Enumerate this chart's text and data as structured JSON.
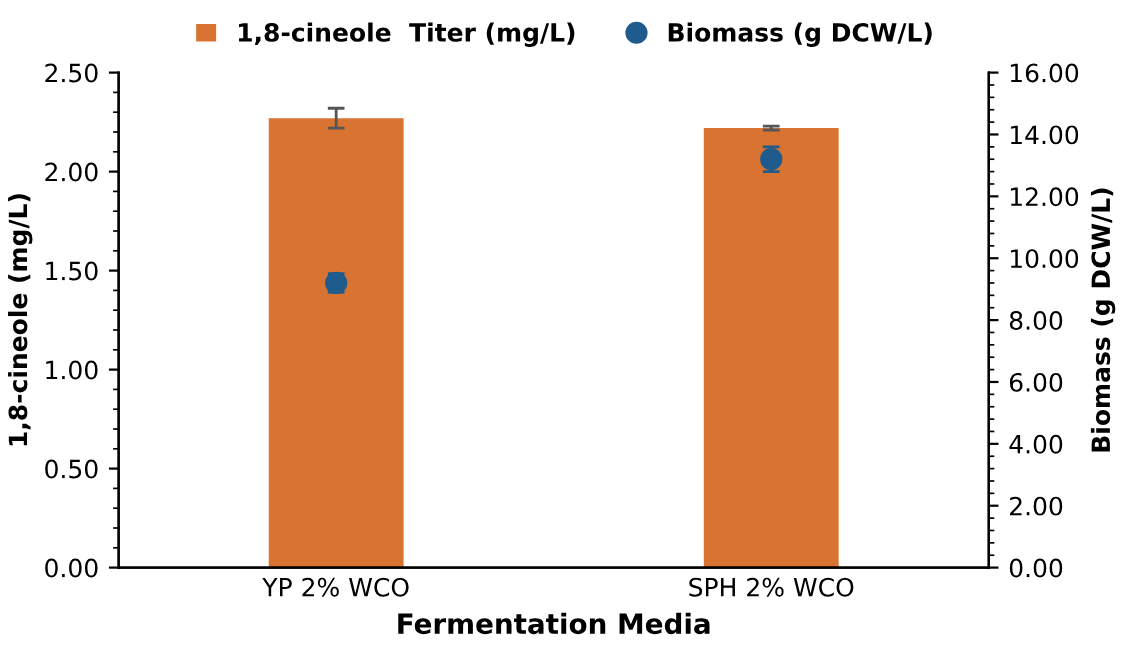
{
  "chart_data": {
    "type": "bar",
    "xlabel": "Fermentation Media",
    "ylabel": "1,8-cineole (mg/L)",
    "y2label": "Biomass (g DCW/L)",
    "categories": [
      "YP 2% WCO",
      "SPH 2% WCO"
    ],
    "series": [
      {
        "name": "1,8-cineole  Titer (mg/L)",
        "color": "#d87332",
        "values": [
          2.27,
          2.22
        ],
        "errors": [
          0.05,
          0.01
        ]
      },
      {
        "name": "Biomass (g DCW/L)",
        "type": "scatter",
        "axis": "y2",
        "color": "#1f5b8c",
        "marker": "circle",
        "values": [
          9.2,
          13.2
        ],
        "errors": [
          0.3,
          0.4
        ]
      }
    ],
    "ylim": [
      0,
      2.5
    ],
    "yticks": [
      {
        "value": 0,
        "label": "0.00"
      },
      {
        "value": 0.5,
        "label": "0.50"
      },
      {
        "value": 1,
        "label": "1.00"
      },
      {
        "value": 1.5,
        "label": "1.50"
      },
      {
        "value": 2,
        "label": "2.00"
      },
      {
        "value": 2.5,
        "label": "2.50"
      }
    ],
    "y2lim": [
      0,
      16
    ],
    "y2ticks": [
      {
        "value": 0,
        "label": "0.00"
      },
      {
        "value": 2,
        "label": "2.00"
      },
      {
        "value": 4,
        "label": "4.00"
      },
      {
        "value": 6,
        "label": "6.00"
      },
      {
        "value": 8,
        "label": "8.00"
      },
      {
        "value": 10,
        "label": "10.00"
      },
      {
        "value": 12,
        "label": "12.00"
      },
      {
        "value": 14,
        "label": "14.00"
      },
      {
        "value": 16,
        "label": "16.00"
      }
    ],
    "legend": "top",
    "grid": false
  }
}
